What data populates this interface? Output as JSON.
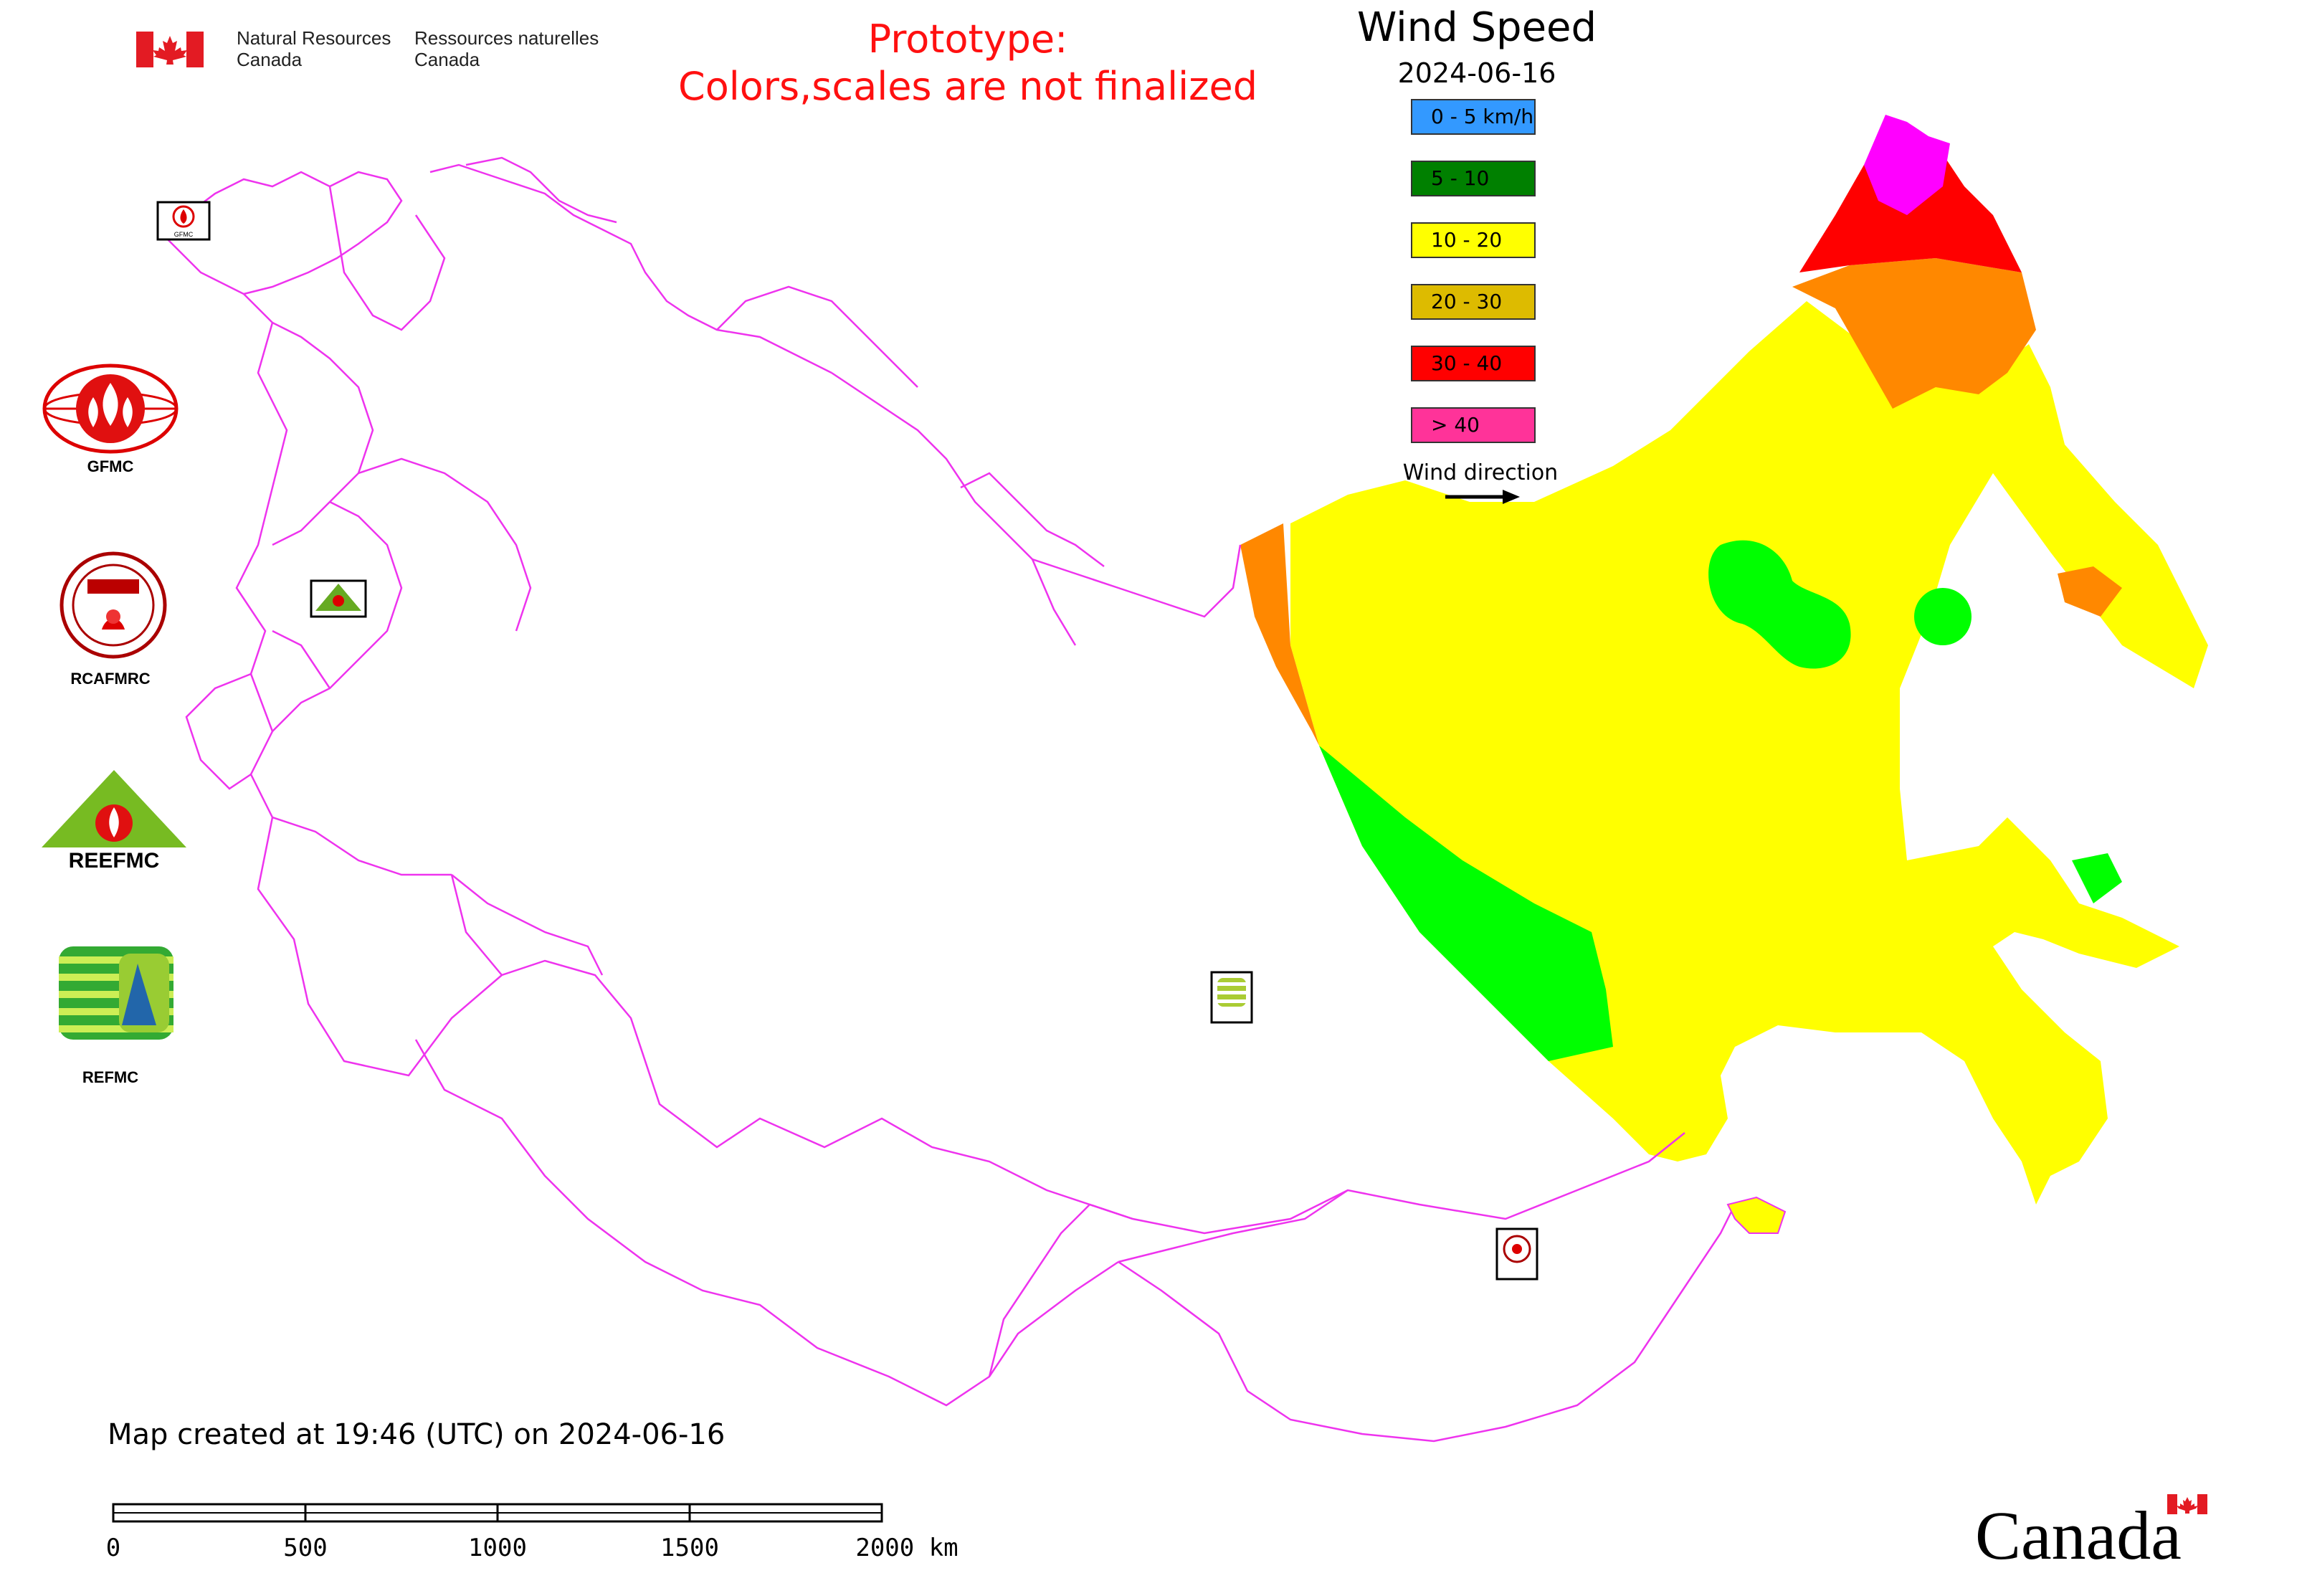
{
  "header": {
    "org_en": [
      "Natural Resources",
      "Canada"
    ],
    "org_fr": [
      "Ressources naturelles",
      "Canada"
    ],
    "notice": [
      "Prototype:",
      "Colors,scales are not finalized"
    ]
  },
  "legend": {
    "title": "Wind Speed",
    "date": "2024-06-16",
    "items": [
      {
        "label": "0 - 5 km/h",
        "color": "#3399ff"
      },
      {
        "label": "5 - 10",
        "color": "#008000"
      },
      {
        "label": "10 - 20",
        "color": "#ffff00"
      },
      {
        "label": "20 - 30",
        "color": "#ddbb00"
      },
      {
        "label": "30 - 40",
        "color": "#ff0000"
      },
      {
        "label": "> 40",
        "color": "#ff3399"
      }
    ],
    "wind_direction_label": "Wind direction"
  },
  "logos": [
    {
      "name": "gfmc-logo",
      "caption": "GFMC",
      "small_text": "GFMC"
    },
    {
      "name": "rcafmrc-logo",
      "caption": "RCAFMRC",
      "small_text": "RCAFMRC"
    },
    {
      "name": "reefmc-logo",
      "caption": "",
      "small_text": "REEFMC"
    },
    {
      "name": "refmc-logo",
      "caption": "REFMC",
      "small_text": "REFMC"
    }
  ],
  "map": {
    "boundary_color": "#ee33ee",
    "fill_colors": {
      "yellow": "#ffff00",
      "green": "#00ff00",
      "orange": "#ff8800",
      "red": "#ff0000",
      "magenta": "#ff00ff"
    }
  },
  "footer": {
    "created": "Map created at 19:46 (UTC) on 2024-06-16",
    "scale_ticks": [
      "0",
      "500",
      "1000",
      "1500",
      "2000 km"
    ],
    "wordmark": "Canada"
  }
}
